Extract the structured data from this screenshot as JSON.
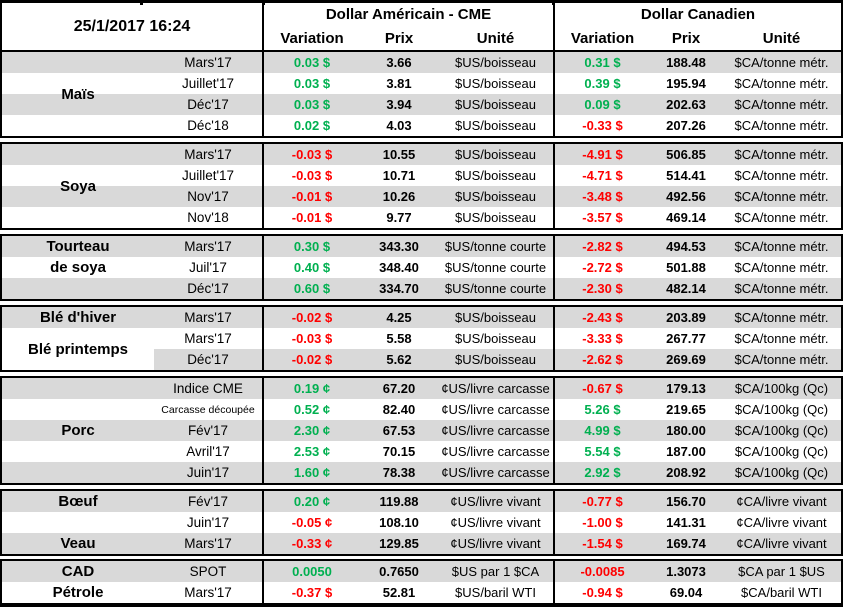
{
  "header": {
    "datetime": "25/1/2017 16:24",
    "us_group": "Dollar Américain - CME",
    "ca_group": "Dollar Canadien",
    "columns": {
      "variation": "Variation",
      "prix": "Prix",
      "unite": "Unité"
    }
  },
  "colors": {
    "positive": "#00B050",
    "negative": "#FF0000",
    "stripe": "#D9D9D9",
    "border": "#000000"
  },
  "sections": [
    {
      "id": "mais",
      "labels": [
        {
          "text": "Maïs",
          "start": 0,
          "span": 4
        }
      ],
      "rows": [
        {
          "month": "Mars'17",
          "us_var": "0.03 $",
          "us_dir": "up",
          "us_prix": "3.66",
          "us_unit": "$US/boisseau",
          "ca_var": "0.31 $",
          "ca_dir": "up",
          "ca_prix": "188.48",
          "ca_unit": "$CA/tonne métr.",
          "bg": "gray"
        },
        {
          "month": "Juillet'17",
          "us_var": "0.03 $",
          "us_dir": "up",
          "us_prix": "3.81",
          "us_unit": "$US/boisseau",
          "ca_var": "0.39 $",
          "ca_dir": "up",
          "ca_prix": "195.94",
          "ca_unit": "$CA/tonne métr.",
          "bg": "white"
        },
        {
          "month": "Déc'17",
          "us_var": "0.03 $",
          "us_dir": "up",
          "us_prix": "3.94",
          "us_unit": "$US/boisseau",
          "ca_var": "0.09 $",
          "ca_dir": "up",
          "ca_prix": "202.63",
          "ca_unit": "$CA/tonne métr.",
          "bg": "gray"
        },
        {
          "month": "Déc'18",
          "us_var": "0.02 $",
          "us_dir": "up",
          "us_prix": "4.03",
          "us_unit": "$US/boisseau",
          "ca_var": "-0.33 $",
          "ca_dir": "down",
          "ca_prix": "207.26",
          "ca_unit": "$CA/tonne métr.",
          "bg": "white"
        }
      ]
    },
    {
      "id": "soya",
      "labels": [
        {
          "text": "Soya",
          "start": 0,
          "span": 4
        }
      ],
      "rows": [
        {
          "month": "Mars'17",
          "us_var": "-0.03 $",
          "us_dir": "down",
          "us_prix": "10.55",
          "us_unit": "$US/boisseau",
          "ca_var": "-4.91 $",
          "ca_dir": "down",
          "ca_prix": "506.85",
          "ca_unit": "$CA/tonne métr.",
          "bg": "gray"
        },
        {
          "month": "Juillet'17",
          "us_var": "-0.03 $",
          "us_dir": "down",
          "us_prix": "10.71",
          "us_unit": "$US/boisseau",
          "ca_var": "-4.71 $",
          "ca_dir": "down",
          "ca_prix": "514.41",
          "ca_unit": "$CA/tonne métr.",
          "bg": "white"
        },
        {
          "month": "Nov'17",
          "us_var": "-0.01 $",
          "us_dir": "down",
          "us_prix": "10.26",
          "us_unit": "$US/boisseau",
          "ca_var": "-3.48 $",
          "ca_dir": "down",
          "ca_prix": "492.56",
          "ca_unit": "$CA/tonne métr.",
          "bg": "gray"
        },
        {
          "month": "Nov'18",
          "us_var": "-0.01 $",
          "us_dir": "down",
          "us_prix": "9.77",
          "us_unit": "$US/boisseau",
          "ca_var": "-3.57 $",
          "ca_dir": "down",
          "ca_prix": "469.14",
          "ca_unit": "$CA/tonne métr.",
          "bg": "white"
        }
      ]
    },
    {
      "id": "tourteau-de-soya",
      "labels": [
        {
          "text": "Tourteau\nde soya",
          "start": 0,
          "span": 2
        }
      ],
      "rows": [
        {
          "month": "Mars'17",
          "us_var": "0.30 $",
          "us_dir": "up",
          "us_prix": "343.30",
          "us_unit": "$US/tonne courte",
          "ca_var": "-2.82 $",
          "ca_dir": "down",
          "ca_prix": "494.53",
          "ca_unit": "$CA/tonne métr.",
          "bg": "gray"
        },
        {
          "month": "Juil'17",
          "us_var": "0.40 $",
          "us_dir": "up",
          "us_prix": "348.40",
          "us_unit": "$US/tonne courte",
          "ca_var": "-2.72 $",
          "ca_dir": "down",
          "ca_prix": "501.88",
          "ca_unit": "$CA/tonne métr.",
          "bg": "white"
        },
        {
          "month": "Déc'17",
          "us_var": "0.60 $",
          "us_dir": "up",
          "us_prix": "334.70",
          "us_unit": "$US/tonne courte",
          "ca_var": "-2.30 $",
          "ca_dir": "down",
          "ca_prix": "482.14",
          "ca_unit": "$CA/tonne métr.",
          "bg": "gray"
        }
      ]
    },
    {
      "id": "ble",
      "labels": [
        {
          "text": "Blé d'hiver",
          "start": 0,
          "span": 1
        },
        {
          "text": "Blé printemps",
          "start": 1,
          "span": 2
        }
      ],
      "rows": [
        {
          "month": "Mars'17",
          "us_var": "-0.02 $",
          "us_dir": "down",
          "us_prix": "4.25",
          "us_unit": "$US/boisseau",
          "ca_var": "-2.43 $",
          "ca_dir": "down",
          "ca_prix": "203.89",
          "ca_unit": "$CA/tonne métr.",
          "bg": "gray"
        },
        {
          "month": "Mars'17",
          "us_var": "-0.03 $",
          "us_dir": "down",
          "us_prix": "5.58",
          "us_unit": "$US/boisseau",
          "ca_var": "-3.33 $",
          "ca_dir": "down",
          "ca_prix": "267.77",
          "ca_unit": "$CA/tonne métr.",
          "bg": "white"
        },
        {
          "month": "Déc'17",
          "us_var": "-0.02 $",
          "us_dir": "down",
          "us_prix": "5.62",
          "us_unit": "$US/boisseau",
          "ca_var": "-2.62 $",
          "ca_dir": "down",
          "ca_prix": "269.69",
          "ca_unit": "$CA/tonne métr.",
          "bg": "partial"
        }
      ]
    },
    {
      "id": "porc",
      "labels": [
        {
          "text": "Porc",
          "start": 0,
          "span": 5
        }
      ],
      "rows": [
        {
          "month": "Indice CME",
          "small": false,
          "us_var": "0.19 ¢",
          "us_dir": "up",
          "us_prix": "67.20",
          "us_unit": "¢US/livre carcasse",
          "ca_var": "-0.67 $",
          "ca_dir": "down",
          "ca_prix": "179.13",
          "ca_unit": "$CA/100kg (Qc)",
          "bg": "gray"
        },
        {
          "month": "Carcasse découpée",
          "small": true,
          "us_var": "0.52 ¢",
          "us_dir": "up",
          "us_prix": "82.40",
          "us_unit": "¢US/livre carcasse",
          "ca_var": "5.26 $",
          "ca_dir": "up",
          "ca_prix": "219.65",
          "ca_unit": "$CA/100kg (Qc)",
          "bg": "white"
        },
        {
          "month": "Fév'17",
          "small": false,
          "us_var": "2.30 ¢",
          "us_dir": "up",
          "us_prix": "67.53",
          "us_unit": "¢US/livre carcasse",
          "ca_var": "4.99 $",
          "ca_dir": "up",
          "ca_prix": "180.00",
          "ca_unit": "$CA/100kg (Qc)",
          "bg": "gray"
        },
        {
          "month": "Avril'17",
          "small": false,
          "us_var": "2.53 ¢",
          "us_dir": "up",
          "us_prix": "70.15",
          "us_unit": "¢US/livre carcasse",
          "ca_var": "5.54 $",
          "ca_dir": "up",
          "ca_prix": "187.00",
          "ca_unit": "$CA/100kg (Qc)",
          "bg": "white"
        },
        {
          "month": "Juin'17",
          "small": false,
          "us_var": "1.60 ¢",
          "us_dir": "up",
          "us_prix": "78.38",
          "us_unit": "¢US/livre carcasse",
          "ca_var": "2.92 $",
          "ca_dir": "up",
          "ca_prix": "208.92",
          "ca_unit": "$CA/100kg (Qc)",
          "bg": "gray"
        }
      ]
    },
    {
      "id": "boeuf-veau",
      "labels": [
        {
          "text": "Bœuf",
          "start": 0,
          "span": 1
        },
        {
          "text": "Veau",
          "start": 2,
          "span": 1
        }
      ],
      "rows": [
        {
          "month": "Fév'17",
          "us_var": "0.20 ¢",
          "us_dir": "up",
          "us_prix": "119.88",
          "us_unit": "¢US/livre vivant",
          "ca_var": "-0.77 $",
          "ca_dir": "down",
          "ca_prix": "156.70",
          "ca_unit": "¢CA/livre vivant",
          "bg": "gray"
        },
        {
          "month": "Juin'17",
          "us_var": "-0.05 ¢",
          "us_dir": "down",
          "us_prix": "108.10",
          "us_unit": "¢US/livre vivant",
          "ca_var": "-1.00 $",
          "ca_dir": "down",
          "ca_prix": "141.31",
          "ca_unit": "¢CA/livre vivant",
          "bg": "white"
        },
        {
          "month": "Mars'17",
          "us_var": "-0.33 ¢",
          "us_dir": "down",
          "us_prix": "129.85",
          "us_unit": "¢US/livre vivant",
          "ca_var": "-1.54 $",
          "ca_dir": "down",
          "ca_prix": "169.74",
          "ca_unit": "¢CA/livre vivant",
          "bg": "gray"
        }
      ]
    },
    {
      "id": "cad-petrole",
      "labels": [
        {
          "text": "CAD",
          "start": 0,
          "span": 1
        },
        {
          "text": "Pétrole",
          "start": 1,
          "span": 1
        }
      ],
      "rows": [
        {
          "month": "SPOT",
          "us_var": "0.0050",
          "us_dir": "up",
          "us_prix": "0.7650",
          "us_unit": "$US par 1 $CA",
          "ca_var": "-0.0085",
          "ca_dir": "down",
          "ca_prix": "1.3073",
          "ca_unit": "$CA par 1 $US",
          "bg": "gray"
        },
        {
          "month": "Mars'17",
          "us_var": "-0.37 $",
          "us_dir": "down",
          "us_prix": "52.81",
          "us_unit": "$US/baril WTI",
          "ca_var": "-0.94 $",
          "ca_dir": "down",
          "ca_prix": "69.04",
          "ca_unit": "$CA/baril WTI",
          "bg": "white"
        }
      ]
    }
  ]
}
